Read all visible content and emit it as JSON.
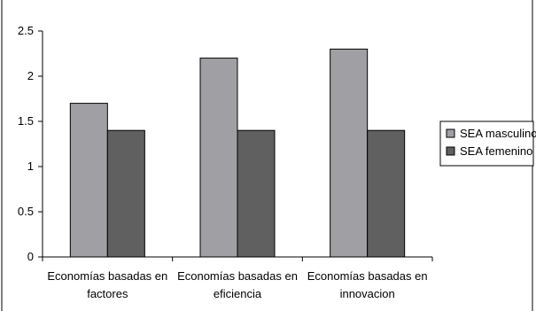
{
  "chart_data": {
    "type": "bar",
    "categories": [
      [
        "Economías basadas en",
        "factores"
      ],
      [
        "Economías basadas en",
        "eficiencia"
      ],
      [
        "Economías basadas en",
        "innovacion"
      ]
    ],
    "series": [
      {
        "name": "SEA masculino",
        "values": [
          1.7,
          2.2,
          2.3
        ],
        "color": "#a0a0a4"
      },
      {
        "name": "SEA femenino",
        "values": [
          1.4,
          1.4,
          1.4
        ],
        "color": "#606060"
      }
    ],
    "ylim": [
      0,
      2.5
    ],
    "yticks": [
      "0",
      "0.5",
      "1",
      "1.5",
      "2",
      "2.5"
    ],
    "ytick_values": [
      0,
      0.5,
      1,
      1.5,
      2,
      2.5
    ],
    "grid": false,
    "legend_position": "right",
    "title": "",
    "xlabel": "",
    "ylabel": ""
  }
}
